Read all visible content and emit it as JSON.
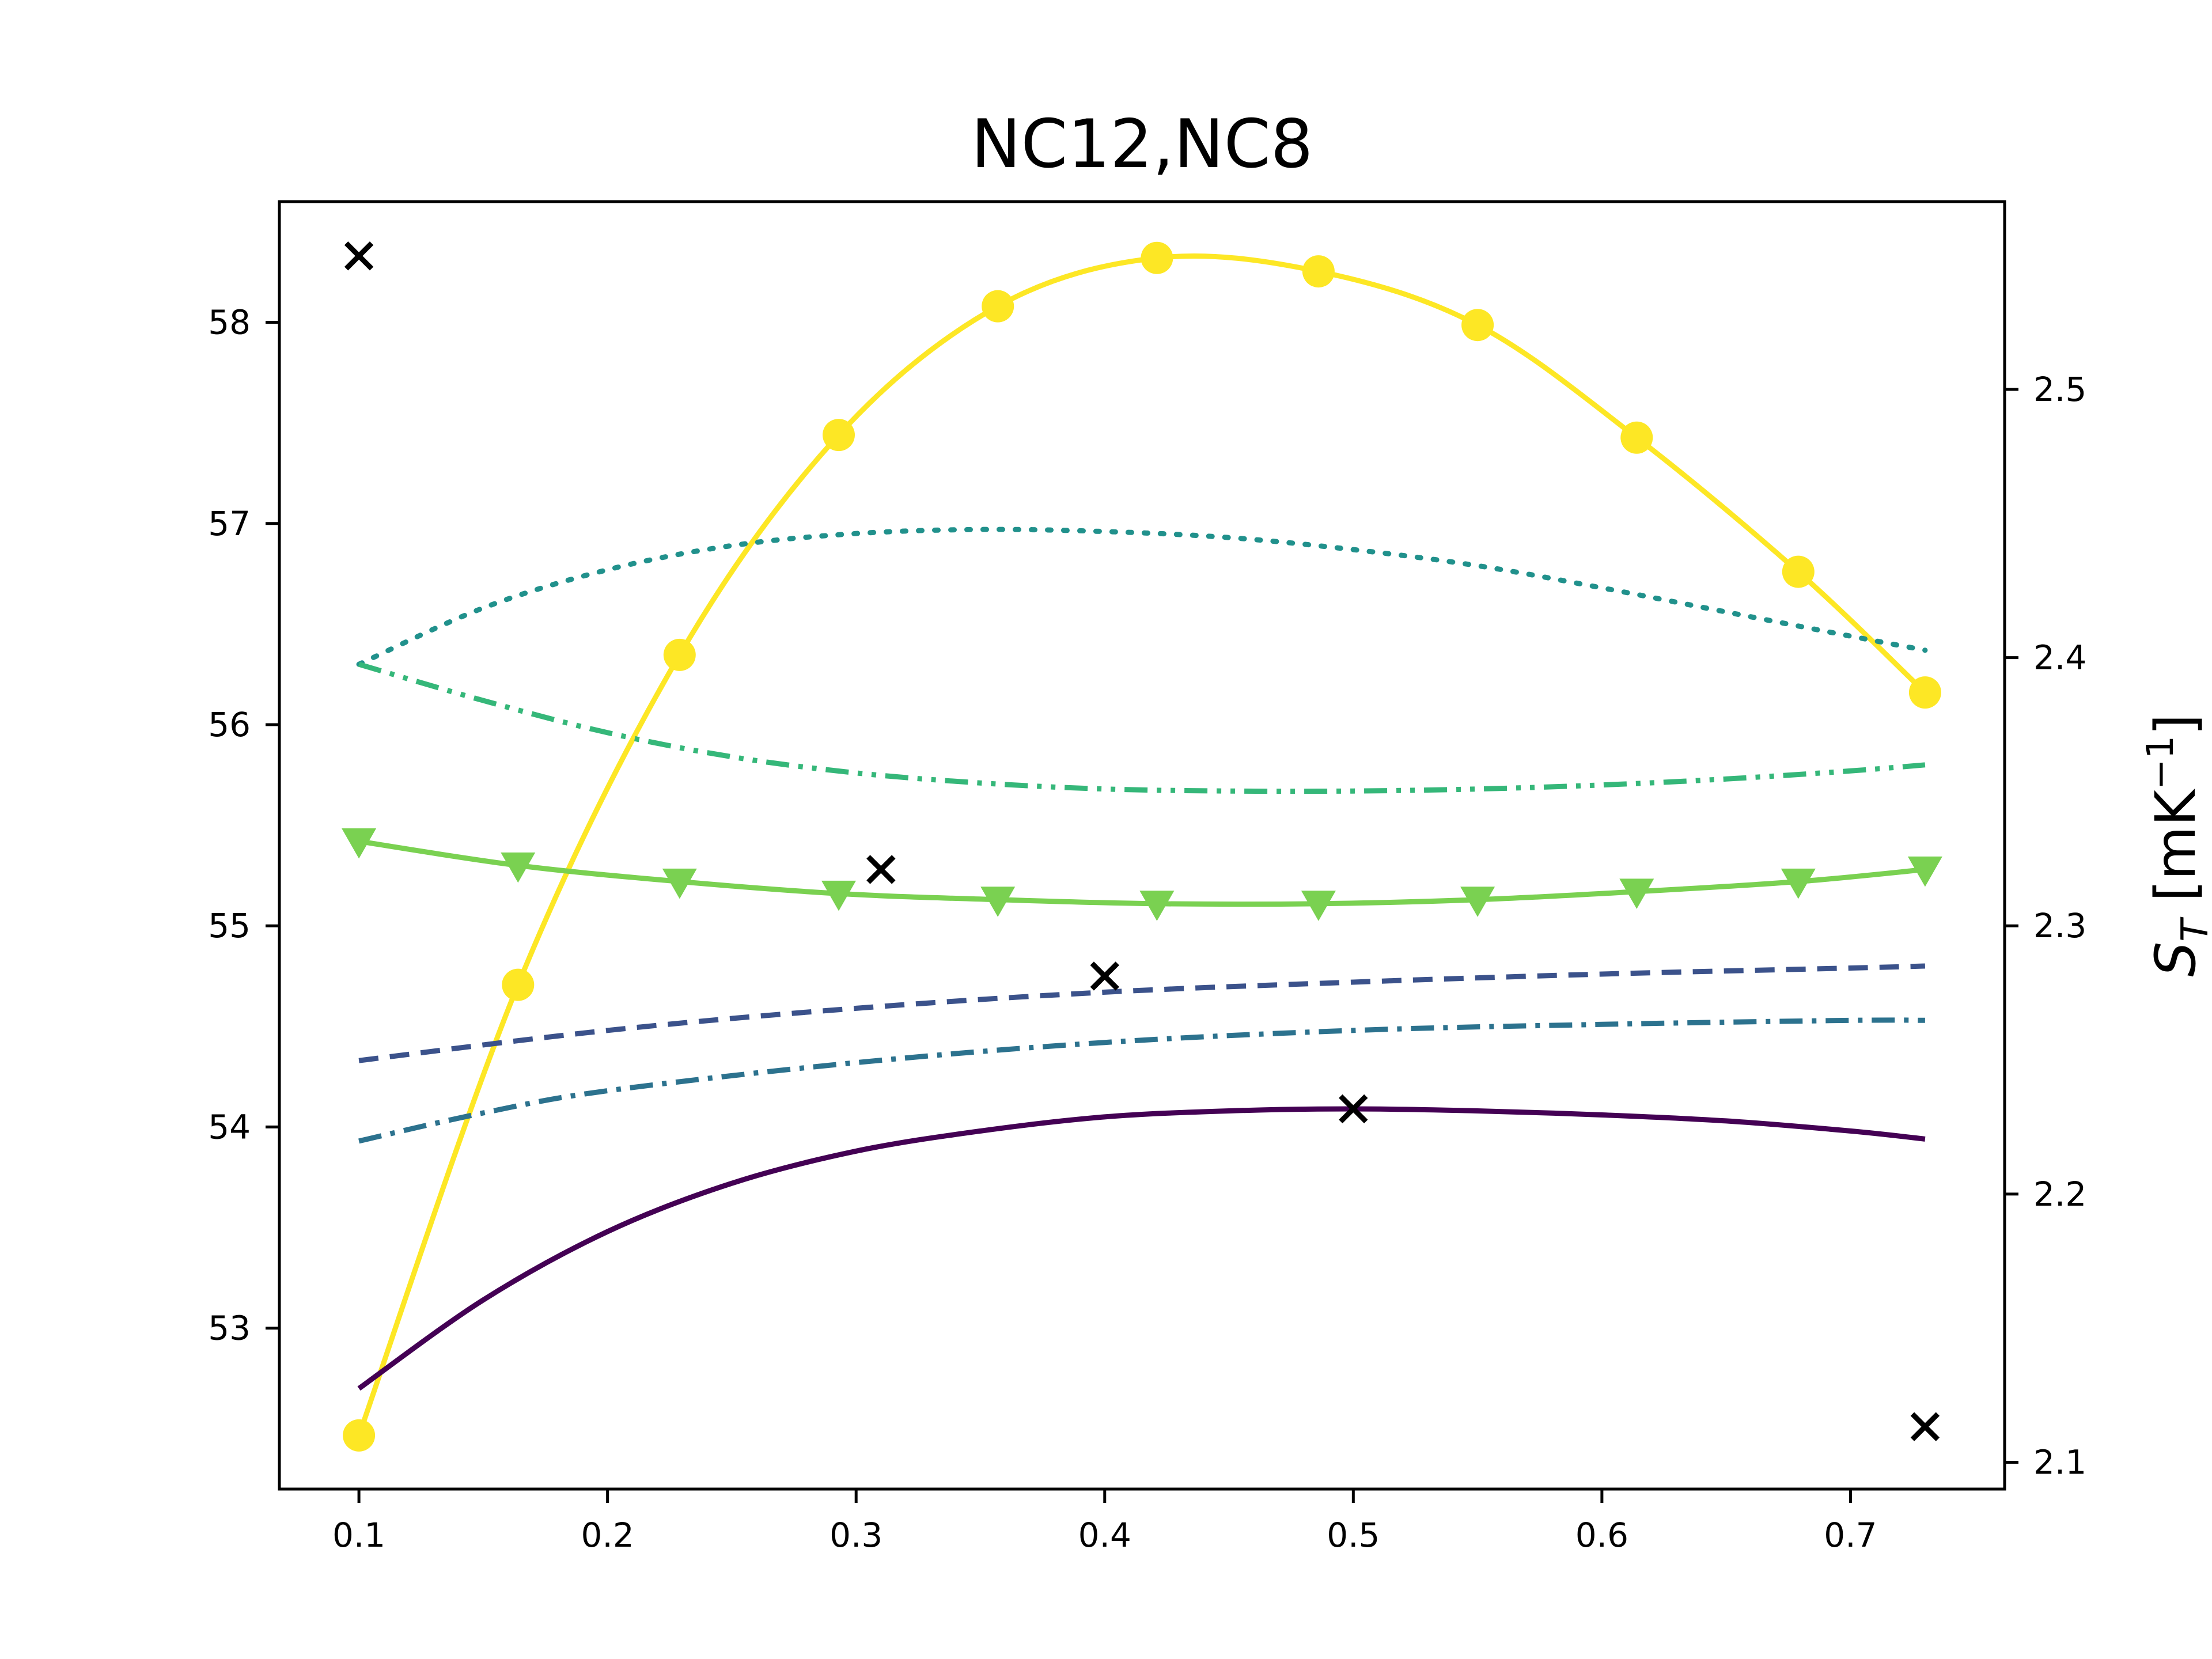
{
  "chart_data": {
    "type": "line",
    "title": "NC12,NC8",
    "xlabel": "",
    "ylabel": "",
    "y2label": "S_T [mK^-1]",
    "y2label_parts": {
      "main": "S",
      "sub": "T",
      "unit_open": " [mK",
      "unit_sup": "−1",
      "unit_close": "]"
    },
    "xlim": [
      0.068,
      0.762
    ],
    "ylim": [
      52.2,
      58.6
    ],
    "y2lim": [
      2.09,
      2.57
    ],
    "x_ticks": [
      "0.1",
      "0.2",
      "0.3",
      "0.4",
      "0.5",
      "0.6",
      "0.7"
    ],
    "y_ticks": [
      "53",
      "54",
      "55",
      "56",
      "57",
      "58"
    ],
    "y2_ticks": [
      "2.1",
      "2.2",
      "2.3",
      "2.4",
      "2.5"
    ],
    "grid": false,
    "legend": "none",
    "series": [
      {
        "axis": "right",
        "color": "#fde725",
        "style": "solid",
        "marker": "circle",
        "x": [
          0.1,
          0.164,
          0.229,
          0.293,
          0.357,
          0.421,
          0.486,
          0.55,
          0.614,
          0.679,
          0.73
        ],
        "y": [
          2.11,
          2.278,
          2.401,
          2.483,
          2.531,
          2.549,
          2.544,
          2.524,
          2.482,
          2.432,
          2.387
        ]
      },
      {
        "axis": "left",
        "color": "#21918c",
        "style": "dotted",
        "marker": "none",
        "x": [
          0.1,
          0.15,
          0.2,
          0.25,
          0.3,
          0.35,
          0.4,
          0.45,
          0.5,
          0.55,
          0.6,
          0.65,
          0.7,
          0.73
        ],
        "y": [
          56.3,
          56.58,
          56.77,
          56.89,
          56.95,
          56.97,
          56.96,
          56.93,
          56.87,
          56.79,
          56.68,
          56.56,
          56.44,
          56.37
        ]
      },
      {
        "axis": "left",
        "color": "#35b779",
        "style": "dashdotdot",
        "marker": "none",
        "x": [
          0.1,
          0.15,
          0.2,
          0.25,
          0.3,
          0.35,
          0.4,
          0.45,
          0.5,
          0.55,
          0.6,
          0.65,
          0.7,
          0.73
        ],
        "y": [
          56.3,
          56.12,
          55.96,
          55.84,
          55.76,
          55.71,
          55.68,
          55.67,
          55.67,
          55.68,
          55.7,
          55.73,
          55.77,
          55.8
        ]
      },
      {
        "axis": "left",
        "color": "#7ad151",
        "style": "solid",
        "marker": "triangle-down",
        "x": [
          0.1,
          0.164,
          0.229,
          0.293,
          0.357,
          0.421,
          0.486,
          0.55,
          0.614,
          0.679,
          0.73
        ],
        "y": [
          55.42,
          55.3,
          55.22,
          55.16,
          55.13,
          55.11,
          55.11,
          55.13,
          55.17,
          55.22,
          55.28
        ]
      },
      {
        "axis": "left",
        "color": "#3b528b",
        "style": "dashed",
        "marker": "none",
        "x": [
          0.1,
          0.2,
          0.3,
          0.4,
          0.5,
          0.6,
          0.7,
          0.73
        ],
        "y": [
          54.33,
          54.48,
          54.59,
          54.67,
          54.72,
          54.76,
          54.79,
          54.8
        ]
      },
      {
        "axis": "left",
        "color": "#2c728e",
        "style": "dashdot",
        "marker": "none",
        "x": [
          0.1,
          0.15,
          0.2,
          0.3,
          0.4,
          0.5,
          0.6,
          0.7,
          0.73
        ],
        "y": [
          53.93,
          54.07,
          54.18,
          54.32,
          54.42,
          54.48,
          54.51,
          54.53,
          54.53
        ]
      },
      {
        "axis": "left",
        "color": "#440154",
        "style": "solid",
        "marker": "none",
        "x": [
          0.1,
          0.15,
          0.2,
          0.25,
          0.3,
          0.35,
          0.4,
          0.45,
          0.5,
          0.55,
          0.6,
          0.65,
          0.7,
          0.73
        ],
        "y": [
          52.7,
          53.14,
          53.48,
          53.72,
          53.88,
          53.98,
          54.05,
          54.08,
          54.09,
          54.08,
          54.06,
          54.03,
          53.98,
          53.94
        ]
      },
      {
        "axis": "left",
        "color": "#000000",
        "style": "none",
        "marker": "x",
        "x": [
          0.1,
          0.31,
          0.4,
          0.5,
          0.73
        ],
        "y": [
          58.33,
          55.28,
          54.75,
          54.09,
          52.51
        ]
      }
    ]
  }
}
